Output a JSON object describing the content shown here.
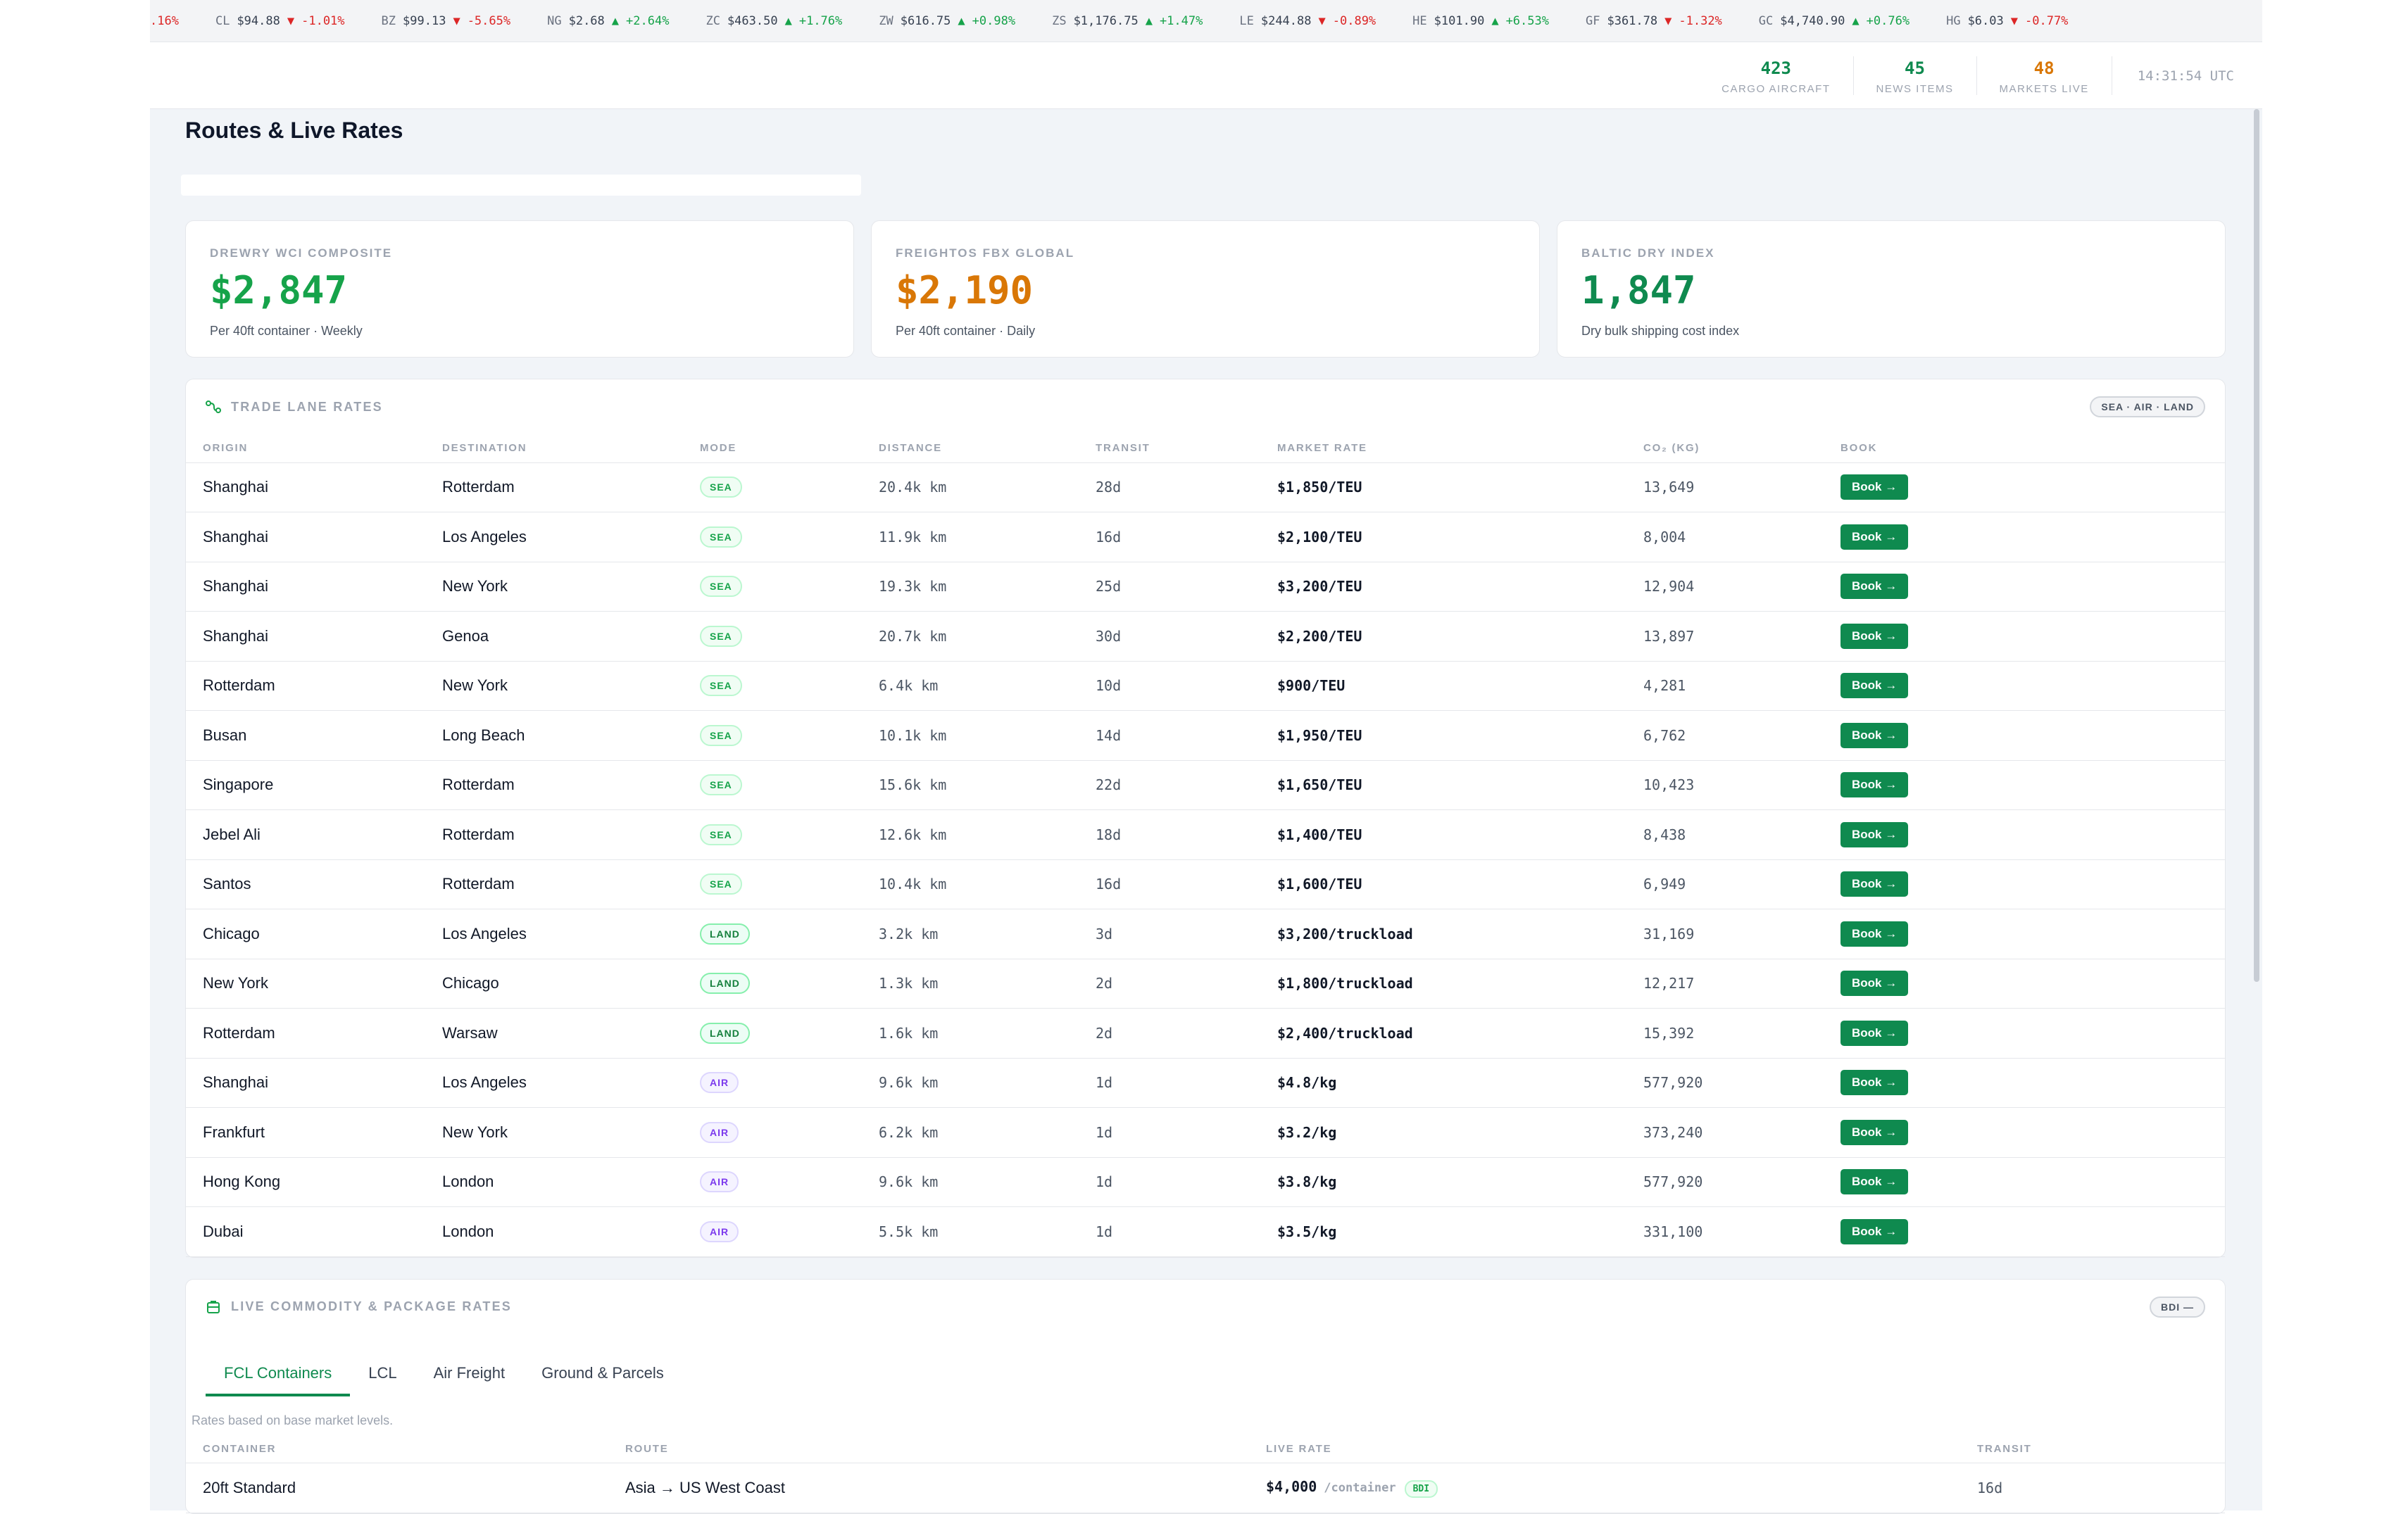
{
  "ticker": [
    {
      "sym": "",
      "price": "",
      "arrow": "",
      "change": ".16%",
      "dir": "down"
    },
    {
      "sym": "CL",
      "price": "$94.88",
      "arrow": "▼",
      "change": "-1.01%",
      "dir": "down"
    },
    {
      "sym": "BZ",
      "price": "$99.13",
      "arrow": "▼",
      "change": "-5.65%",
      "dir": "down"
    },
    {
      "sym": "NG",
      "price": "$2.68",
      "arrow": "▲",
      "change": "+2.64%",
      "dir": "up"
    },
    {
      "sym": "ZC",
      "price": "$463.50",
      "arrow": "▲",
      "change": "+1.76%",
      "dir": "up"
    },
    {
      "sym": "ZW",
      "price": "$616.75",
      "arrow": "▲",
      "change": "+0.98%",
      "dir": "up"
    },
    {
      "sym": "ZS",
      "price": "$1,176.75",
      "arrow": "▲",
      "change": "+1.47%",
      "dir": "up"
    },
    {
      "sym": "LE",
      "price": "$244.88",
      "arrow": "▼",
      "change": "-0.89%",
      "dir": "down"
    },
    {
      "sym": "HE",
      "price": "$101.90",
      "arrow": "▲",
      "change": "+6.53%",
      "dir": "up"
    },
    {
      "sym": "GF",
      "price": "$361.78",
      "arrow": "▼",
      "change": "-1.32%",
      "dir": "down"
    },
    {
      "sym": "GC",
      "price": "$4,740.90",
      "arrow": "▲",
      "change": "+0.76%",
      "dir": "up"
    },
    {
      "sym": "HG",
      "price": "$6.03",
      "arrow": "▼",
      "change": "-0.77%",
      "dir": "down"
    }
  ],
  "stats": [
    {
      "num": "423",
      "label": "CARGO AIRCRAFT",
      "color": "#0f8a4f"
    },
    {
      "num": "45",
      "label": "NEWS ITEMS",
      "color": "#0f8a4f"
    },
    {
      "num": "48",
      "label": "MARKETS LIVE",
      "color": "#d97706"
    }
  ],
  "clock": "14:31:54 UTC",
  "page_title": "Routes & Live Rates",
  "cards": [
    {
      "label": "DREWRY WCI COMPOSITE",
      "value": "$2,847",
      "sub": "Per 40ft container · Weekly",
      "color": "#16a34a"
    },
    {
      "label": "FREIGHTOS FBX GLOBAL",
      "value": "$2,190",
      "sub": "Per 40ft container · Daily",
      "color": "#d97706"
    },
    {
      "label": "BALTIC DRY INDEX",
      "value": "1,847",
      "sub": "Dry bulk shipping cost index",
      "color": "#0f8a4f"
    }
  ],
  "lanes": {
    "title": "TRADE LANE RATES",
    "pill": "SEA · AIR · LAND",
    "headers": [
      "ORIGIN",
      "DESTINATION",
      "MODE",
      "DISTANCE",
      "TRANSIT",
      "MARKET RATE",
      "CO₂ (KG)",
      "BOOK"
    ],
    "book_label": "Book →",
    "rows": [
      {
        "origin": "Shanghai",
        "dest": "Rotterdam",
        "mode": "SEA",
        "dist": "20.4k km",
        "transit": "28d",
        "rate": "$1,850/TEU",
        "co2": "13,649"
      },
      {
        "origin": "Shanghai",
        "dest": "Los Angeles",
        "mode": "SEA",
        "dist": "11.9k km",
        "transit": "16d",
        "rate": "$2,100/TEU",
        "co2": "8,004"
      },
      {
        "origin": "Shanghai",
        "dest": "New York",
        "mode": "SEA",
        "dist": "19.3k km",
        "transit": "25d",
        "rate": "$3,200/TEU",
        "co2": "12,904"
      },
      {
        "origin": "Shanghai",
        "dest": "Genoa",
        "mode": "SEA",
        "dist": "20.7k km",
        "transit": "30d",
        "rate": "$2,200/TEU",
        "co2": "13,897"
      },
      {
        "origin": "Rotterdam",
        "dest": "New York",
        "mode": "SEA",
        "dist": "6.4k km",
        "transit": "10d",
        "rate": "$900/TEU",
        "co2": "4,281"
      },
      {
        "origin": "Busan",
        "dest": "Long Beach",
        "mode": "SEA",
        "dist": "10.1k km",
        "transit": "14d",
        "rate": "$1,950/TEU",
        "co2": "6,762"
      },
      {
        "origin": "Singapore",
        "dest": "Rotterdam",
        "mode": "SEA",
        "dist": "15.6k km",
        "transit": "22d",
        "rate": "$1,650/TEU",
        "co2": "10,423"
      },
      {
        "origin": "Jebel Ali",
        "dest": "Rotterdam",
        "mode": "SEA",
        "dist": "12.6k km",
        "transit": "18d",
        "rate": "$1,400/TEU",
        "co2": "8,438"
      },
      {
        "origin": "Santos",
        "dest": "Rotterdam",
        "mode": "SEA",
        "dist": "10.4k km",
        "transit": "16d",
        "rate": "$1,600/TEU",
        "co2": "6,949"
      },
      {
        "origin": "Chicago",
        "dest": "Los Angeles",
        "mode": "LAND",
        "dist": "3.2k km",
        "transit": "3d",
        "rate": "$3,200/truckload",
        "co2": "31,169"
      },
      {
        "origin": "New York",
        "dest": "Chicago",
        "mode": "LAND",
        "dist": "1.3k km",
        "transit": "2d",
        "rate": "$1,800/truckload",
        "co2": "12,217"
      },
      {
        "origin": "Rotterdam",
        "dest": "Warsaw",
        "mode": "LAND",
        "dist": "1.6k km",
        "transit": "2d",
        "rate": "$2,400/truckload",
        "co2": "15,392"
      },
      {
        "origin": "Shanghai",
        "dest": "Los Angeles",
        "mode": "AIR",
        "dist": "9.6k km",
        "transit": "1d",
        "rate": "$4.8/kg",
        "co2": "577,920"
      },
      {
        "origin": "Frankfurt",
        "dest": "New York",
        "mode": "AIR",
        "dist": "6.2k km",
        "transit": "1d",
        "rate": "$3.2/kg",
        "co2": "373,240"
      },
      {
        "origin": "Hong Kong",
        "dest": "London",
        "mode": "AIR",
        "dist": "9.6k km",
        "transit": "1d",
        "rate": "$3.8/kg",
        "co2": "577,920"
      },
      {
        "origin": "Dubai",
        "dest": "London",
        "mode": "AIR",
        "dist": "5.5k km",
        "transit": "1d",
        "rate": "$3.5/kg",
        "co2": "331,100"
      }
    ]
  },
  "commodity": {
    "title": "LIVE COMMODITY & PACKAGE RATES",
    "pill": "BDI —",
    "tabs": [
      "FCL Containers",
      "LCL",
      "Air Freight",
      "Ground & Parcels"
    ],
    "active_tab": 0,
    "note": "Rates based on base market levels.",
    "headers": [
      "CONTAINER",
      "ROUTE",
      "LIVE RATE",
      "TRANSIT"
    ],
    "rows": [
      {
        "container": "20ft Standard",
        "route": "Asia → US West Coast",
        "rate": "$4,000",
        "suffix": "/container",
        "badge": "BDI",
        "transit": "16d"
      }
    ]
  }
}
